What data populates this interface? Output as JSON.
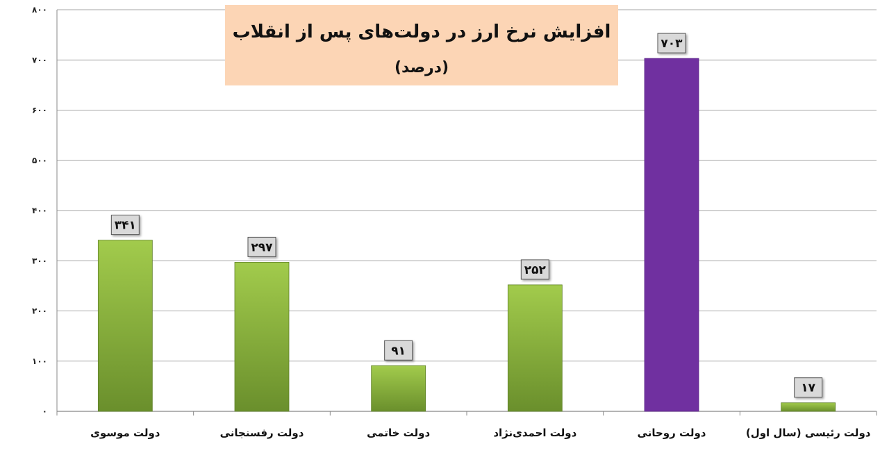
{
  "chart_data": {
    "type": "bar",
    "title": "افزایش نرخ ارز در دولت‌های پس از انقلاب",
    "subtitle": "(درصد)",
    "categories": [
      "دولت موسوی",
      "دولت رفسنجانی",
      "دولت خاتمی",
      "دولت احمدی‌نژاد",
      "دولت روحانی",
      "دولت رئیسی (سال اول)"
    ],
    "values": [
      341,
      297,
      91,
      252,
      703,
      17
    ],
    "data_labels": [
      "۳۴۱",
      "۲۹۷",
      "۹۱",
      "۲۵۲",
      "۷۰۳",
      "۱۷"
    ],
    "ylim": [
      0,
      800
    ],
    "yticks": [
      0,
      100,
      200,
      300,
      400,
      500,
      600,
      700,
      800
    ],
    "ytick_labels": [
      "۰",
      "۱۰۰",
      "۲۰۰",
      "۳۰۰",
      "۴۰۰",
      "۵۰۰",
      "۶۰۰",
      "۷۰۰",
      "۸۰۰"
    ],
    "grid": true,
    "colors": {
      "default_bar_top": "#9dc74a",
      "default_bar_bottom": "#6b8e2b",
      "highlight_bar": "#7030a0",
      "title_box": "#fcd5b5",
      "label_box": "#d9d9d9",
      "grid": "#888888"
    },
    "highlight_index": 4
  }
}
